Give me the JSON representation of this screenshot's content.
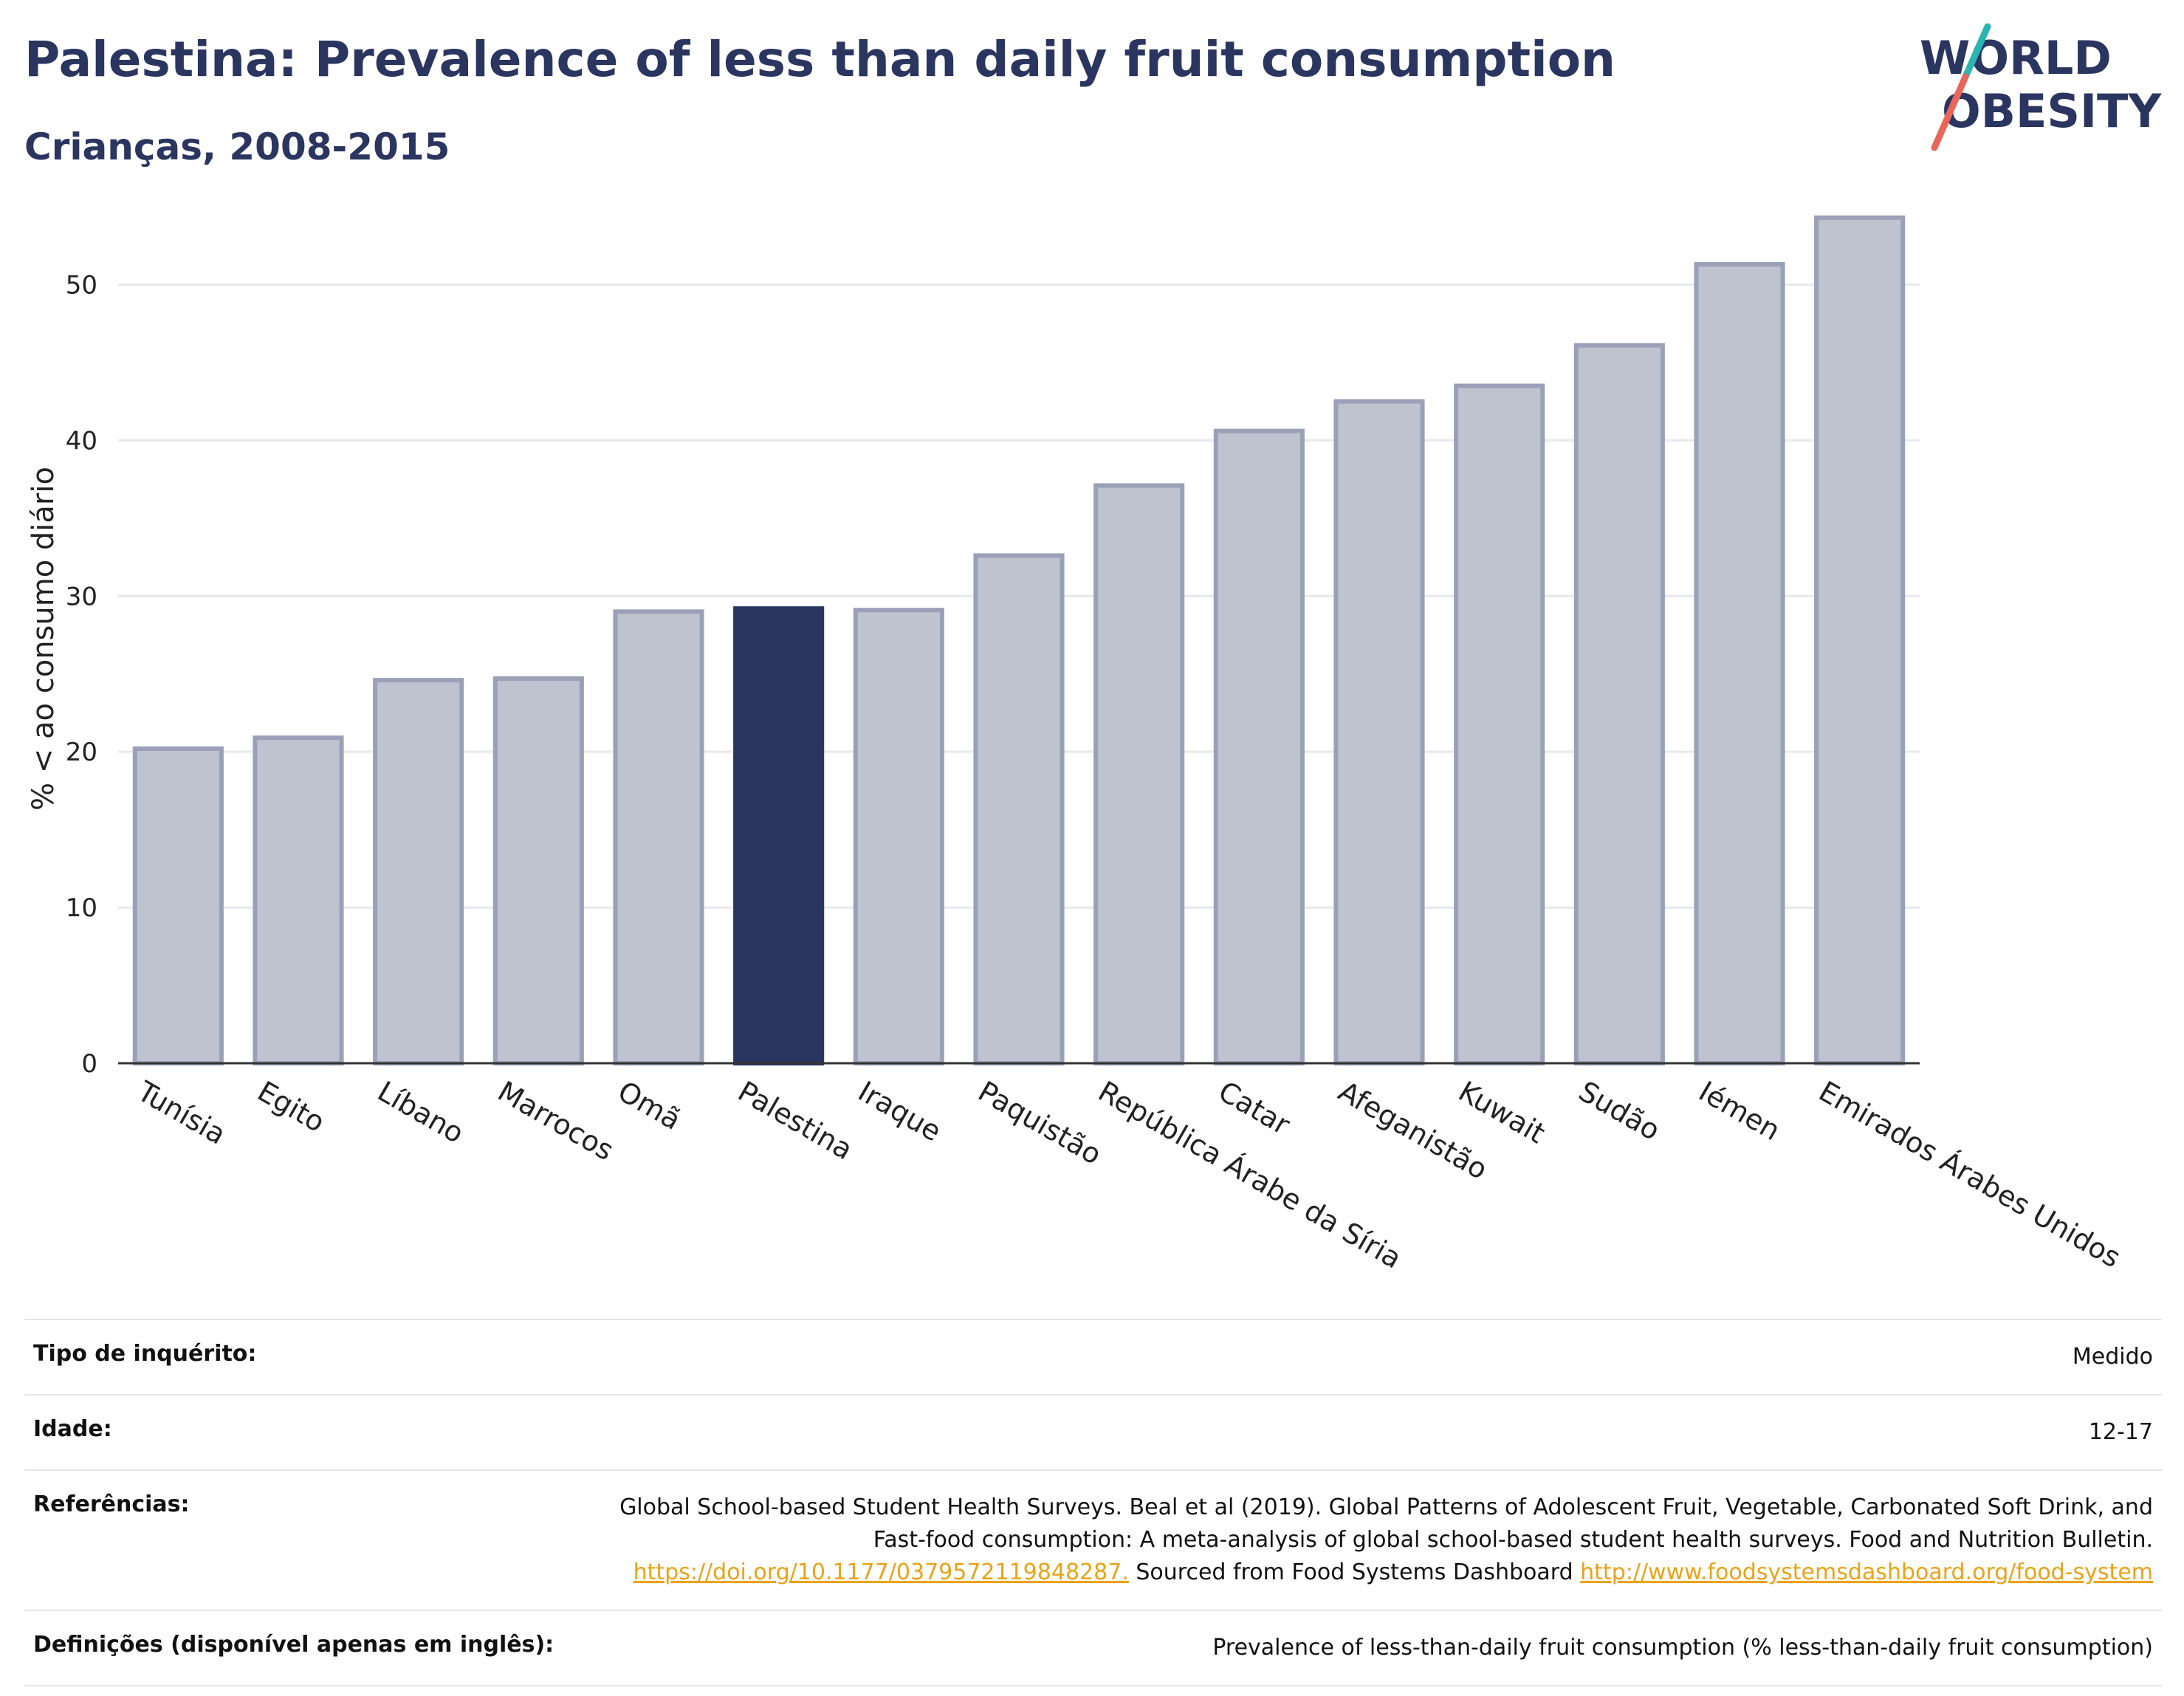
{
  "header": {
    "title": "Palestina: Prevalence of less than daily fruit consumption",
    "subtitle": "Crianças, 2008-2015"
  },
  "logo": {
    "line1": "WORLD",
    "line2": "OBESITY",
    "accent_teal": "#2bb5b0",
    "accent_red": "#e8675a"
  },
  "chart_data": {
    "type": "bar",
    "ylabel": "% < ao consumo diário",
    "ylim": [
      0,
      55
    ],
    "yticks": [
      0,
      10,
      20,
      30,
      40,
      50
    ],
    "grid": true,
    "categories": [
      "Tunísia",
      "Egito",
      "Líbano",
      "Marrocos",
      "Omã",
      "Palestina",
      "Iraque",
      "Paquistão",
      "República Árabe da Síria",
      "Catar",
      "Afeganistão",
      "Kuwait",
      "Sudão",
      "Iémen",
      "Emirados Árabes Unidos"
    ],
    "values": [
      20.2,
      20.9,
      24.6,
      24.7,
      29.0,
      29.2,
      29.1,
      32.6,
      37.1,
      40.6,
      42.5,
      43.5,
      46.1,
      51.3,
      54.3
    ],
    "highlight": "Palestina",
    "colors": {
      "bar": "#bfc3d0",
      "bar_border": "#9aa0b8",
      "highlight": "#2a3560",
      "grid": "#e8e8ee",
      "axis": "#333333"
    }
  },
  "info": {
    "rows": [
      {
        "label": "Tipo de inquérito:",
        "value": "Medido"
      },
      {
        "label": "Idade:",
        "value": "12-17"
      },
      {
        "label": "Referências:",
        "value": "Global School-based Student Health Surveys. Beal et al (2019). Global Patterns of Adolescent Fruit, Vegetable, Carbonated Soft Drink, and Fast-food consumption: A meta-analysis of global school-based student health surveys. Food and Nutrition Bulletin.",
        "link1": "https://doi.org/10.1177/0379572119848287.",
        "middle": " Sourced from Food Systems Dashboard ",
        "link2": "http://www.foodsystemsdashboard.org/food-system"
      },
      {
        "label": "Definições (disponível apenas em inglês):",
        "value": "Prevalence of less-than-daily fruit consumption (% less-than-daily fruit consumption)"
      }
    ]
  }
}
